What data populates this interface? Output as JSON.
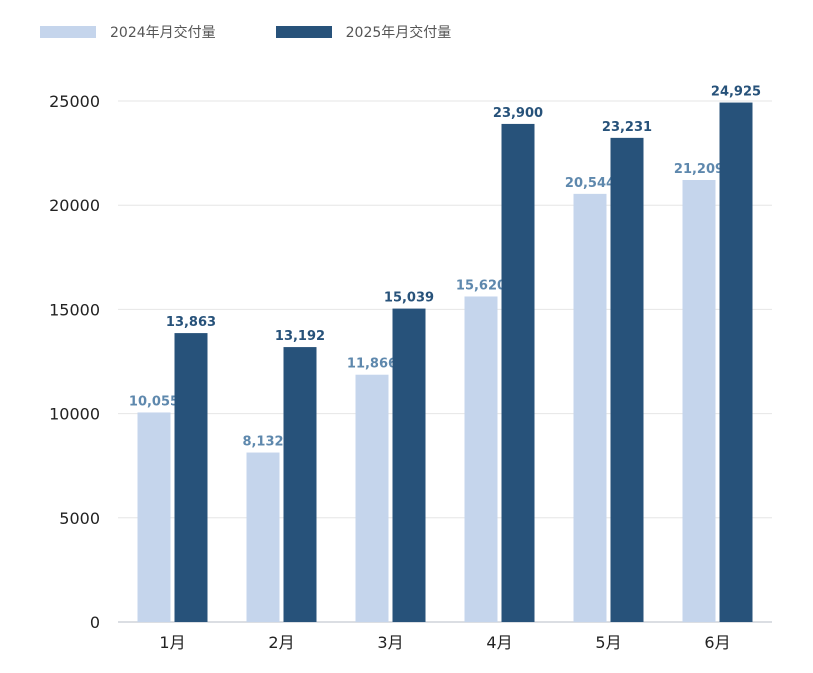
{
  "chart_data": {
    "type": "bar",
    "categories": [
      "1月",
      "2月",
      "3月",
      "4月",
      "5月",
      "6月"
    ],
    "series": [
      {
        "name": "2024年月交付量",
        "values": [
          10055,
          8132,
          11866,
          15620,
          20544,
          21209
        ],
        "labels": [
          "10,055",
          "8,132",
          "11,866",
          "15,620",
          "20,544",
          "21,209"
        ],
        "color": "#c5d5ec",
        "label_color": "#5e88ad"
      },
      {
        "name": "2025年月交付量",
        "values": [
          13863,
          13192,
          15039,
          23900,
          23231,
          24925
        ],
        "labels": [
          "13,863",
          "13,192",
          "15,039",
          "23,900",
          "23,231",
          "24,925"
        ],
        "color": "#27527a",
        "label_color": "#27527a"
      }
    ],
    "yticks": [
      "0",
      "5000",
      "10000",
      "15000",
      "20000",
      "25000"
    ],
    "ylim": [
      0,
      25000
    ],
    "grid": true,
    "legend": "top-left",
    "title": "",
    "xlabel": "",
    "ylabel": ""
  }
}
